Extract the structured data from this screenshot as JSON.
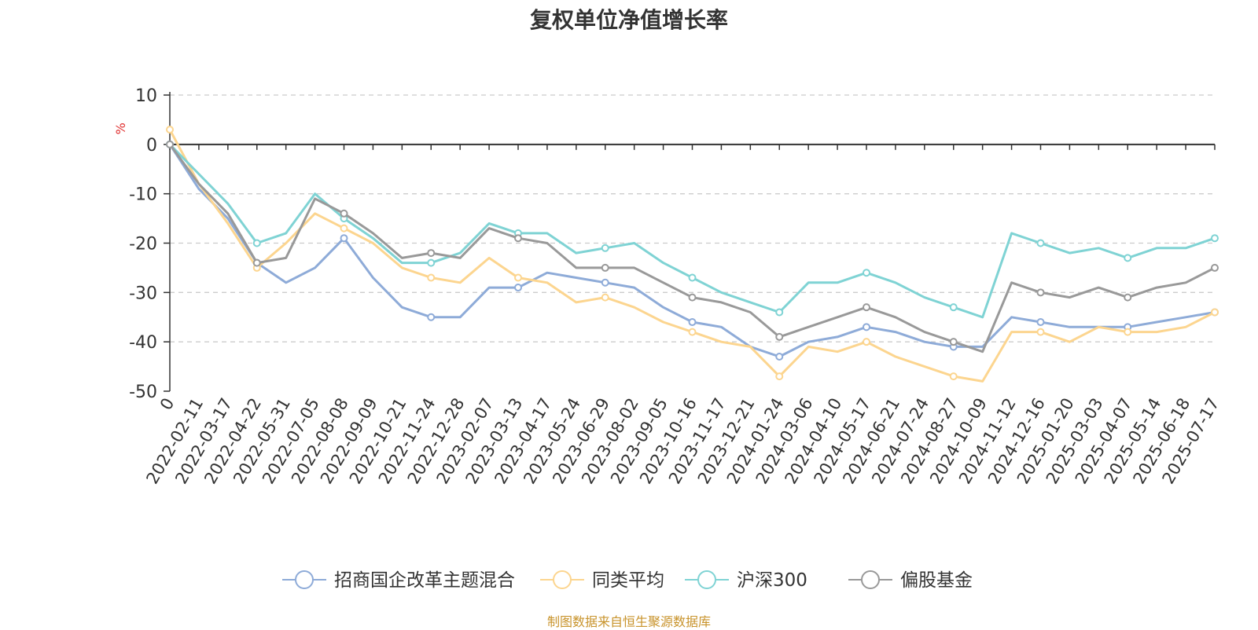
{
  "chart_data": {
    "type": "line",
    "title": "复权单位净值增长率",
    "ylabel": "%",
    "ylim": [
      -50,
      10
    ],
    "yticks": [
      10,
      0,
      -10,
      -20,
      -30,
      -40,
      -50
    ],
    "grid": true,
    "legend_position": "bottom",
    "x": [
      "0",
      "2022-02-11",
      "2022-03-17",
      "2022-04-22",
      "2022-05-31",
      "2022-07-05",
      "2022-08-08",
      "2022-09-09",
      "2022-10-21",
      "2022-11-24",
      "2022-12-28",
      "2023-02-07",
      "2023-03-13",
      "2023-04-17",
      "2023-05-24",
      "2023-06-29",
      "2023-08-02",
      "2023-09-05",
      "2023-10-16",
      "2023-11-17",
      "2023-12-21",
      "2024-01-24",
      "2024-03-06",
      "2024-04-10",
      "2024-05-17",
      "2024-06-21",
      "2024-07-24",
      "2024-08-27",
      "2024-10-09",
      "2024-11-12",
      "2024-12-16",
      "2025-01-20",
      "2025-03-03",
      "2025-04-07",
      "2025-05-14",
      "2025-06-18",
      "2025-07-17"
    ],
    "series": [
      {
        "name": "招商国企改革主题混合",
        "color": "#8eabd8",
        "values": [
          0,
          -9,
          -15,
          -24,
          -28,
          -25,
          -19,
          -27,
          -33,
          -35,
          -35,
          -29,
          -29,
          -26,
          -27,
          -28,
          -29,
          -33,
          -36,
          -37,
          -41,
          -43,
          -40,
          -39,
          -37,
          -38,
          -40,
          -41,
          -41,
          -35,
          -36,
          -37,
          -37,
          -37,
          -36,
          -35,
          -34
        ]
      },
      {
        "name": "同类平均",
        "color": "#fcd58f",
        "values": [
          3,
          -8,
          -16,
          -25,
          -20,
          -14,
          -17,
          -20,
          -25,
          -27,
          -28,
          -23,
          -27,
          -28,
          -32,
          -31,
          -33,
          -36,
          -38,
          -40,
          -41,
          -47,
          -41,
          -42,
          -40,
          -43,
          -45,
          -47,
          -48,
          -38,
          -38,
          -40,
          -37,
          -38,
          -38,
          -37,
          -34
        ]
      },
      {
        "name": "沪深300",
        "color": "#7fd3d4",
        "values": [
          0,
          -6,
          -12,
          -20,
          -18,
          -10,
          -15,
          -19,
          -24,
          -24,
          -22,
          -16,
          -18,
          -18,
          -22,
          -21,
          -20,
          -24,
          -27,
          -30,
          -32,
          -34,
          -28,
          -28,
          -26,
          -28,
          -31,
          -33,
          -35,
          -18,
          -20,
          -22,
          -21,
          -23,
          -21,
          -21,
          -19
        ]
      },
      {
        "name": "偏股基金",
        "color": "#999999",
        "values": [
          0,
          -8,
          -14,
          -24,
          -23,
          -11,
          -14,
          -18,
          -23,
          -22,
          -23,
          -17,
          -19,
          -20,
          -25,
          -25,
          -25,
          -28,
          -31,
          -32,
          -34,
          -39,
          -37,
          -35,
          -33,
          -35,
          -38,
          -40,
          -42,
          -28,
          -30,
          -31,
          -29,
          -31,
          -29,
          -28,
          -25
        ]
      }
    ]
  },
  "source_note": "制图数据来自恒生聚源数据库"
}
